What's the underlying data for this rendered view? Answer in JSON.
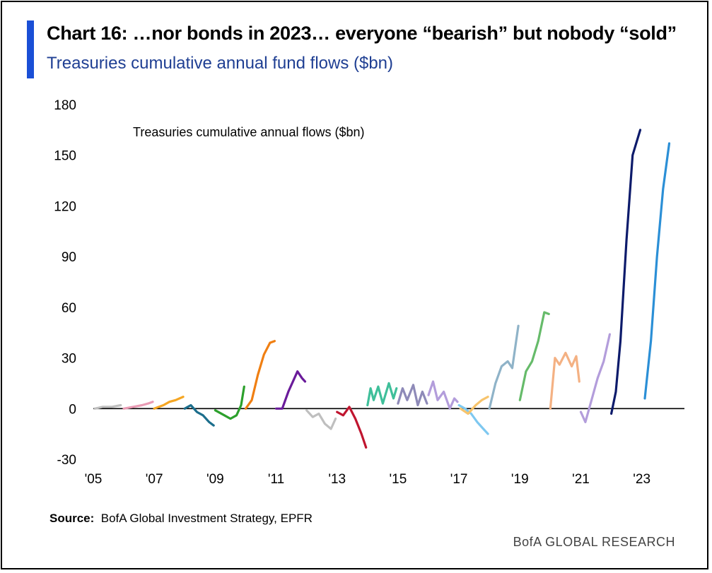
{
  "header": {
    "title": "Chart 16: …nor bonds in 2023… everyone “bearish” but nobody “sold”",
    "subtitle": "Treasuries cumulative annual fund flows ($bn)"
  },
  "footer": {
    "source_label": "Source:",
    "source_text": "BofA Global Investment Strategy, EPFR",
    "brand": "BofA GLOBAL RESEARCH"
  },
  "colors": {
    "accent": "#1a4fd6",
    "title": "#000000",
    "subtitle": "#1f3f93"
  },
  "chart_data": {
    "type": "line",
    "title": "Treasuries cumulative annual flows ($bn)",
    "xlim": [
      2005,
      2024.4
    ],
    "ylim": [
      -30,
      180
    ],
    "y_ticks": [
      180,
      150,
      120,
      90,
      60,
      30,
      0,
      -30
    ],
    "x_ticks": [
      {
        "label": "'05",
        "value": 2005
      },
      {
        "label": "'07",
        "value": 2007
      },
      {
        "label": "'09",
        "value": 2009
      },
      {
        "label": "'11",
        "value": 2011
      },
      {
        "label": "'13",
        "value": 2013
      },
      {
        "label": "'15",
        "value": 2015
      },
      {
        "label": "'17",
        "value": 2017
      },
      {
        "label": "'19",
        "value": 2019
      },
      {
        "label": "'21",
        "value": 2021
      },
      {
        "label": "'23",
        "value": 2023
      }
    ],
    "grid": false,
    "legend": "none",
    "series": [
      {
        "year": 2005,
        "color": "#bfbfbf",
        "points": [
          [
            2005.05,
            0
          ],
          [
            2005.3,
            1
          ],
          [
            2005.6,
            1
          ],
          [
            2005.9,
            2
          ]
        ]
      },
      {
        "year": 2006,
        "color": "#e99bb4",
        "points": [
          [
            2006.0,
            0
          ],
          [
            2006.3,
            1
          ],
          [
            2006.6,
            2
          ],
          [
            2006.8,
            3
          ],
          [
            2006.95,
            4
          ]
        ]
      },
      {
        "year": 2007,
        "color": "#f5a623",
        "points": [
          [
            2007.0,
            0
          ],
          [
            2007.3,
            2
          ],
          [
            2007.5,
            4
          ],
          [
            2007.7,
            5
          ],
          [
            2007.95,
            7
          ]
        ]
      },
      {
        "year": 2008,
        "color": "#1c6e8c",
        "points": [
          [
            2008.0,
            0
          ],
          [
            2008.2,
            2
          ],
          [
            2008.4,
            -2
          ],
          [
            2008.6,
            -4
          ],
          [
            2008.8,
            -8
          ],
          [
            2008.95,
            -10
          ]
        ]
      },
      {
        "year": 2009,
        "color": "#2ca02c",
        "points": [
          [
            2009.0,
            -1
          ],
          [
            2009.3,
            -4
          ],
          [
            2009.5,
            -6
          ],
          [
            2009.7,
            -4
          ],
          [
            2009.85,
            2
          ],
          [
            2009.95,
            13
          ]
        ]
      },
      {
        "year": 2010,
        "color": "#f07f12",
        "points": [
          [
            2010.0,
            0
          ],
          [
            2010.2,
            5
          ],
          [
            2010.4,
            20
          ],
          [
            2010.6,
            32
          ],
          [
            2010.8,
            39
          ],
          [
            2010.95,
            40
          ]
        ]
      },
      {
        "year": 2011,
        "color": "#6a1b9a",
        "points": [
          [
            2011.0,
            0
          ],
          [
            2011.2,
            0
          ],
          [
            2011.4,
            10
          ],
          [
            2011.6,
            18
          ],
          [
            2011.7,
            22
          ],
          [
            2011.85,
            18
          ],
          [
            2011.95,
            16
          ]
        ]
      },
      {
        "year": 2012,
        "color": "#bfbfbf",
        "points": [
          [
            2012.0,
            -1
          ],
          [
            2012.2,
            -5
          ],
          [
            2012.4,
            -3
          ],
          [
            2012.6,
            -9
          ],
          [
            2012.8,
            -12
          ],
          [
            2012.95,
            -6
          ]
        ]
      },
      {
        "year": 2013,
        "color": "#c0152f",
        "points": [
          [
            2013.0,
            -2
          ],
          [
            2013.2,
            -4
          ],
          [
            2013.4,
            1
          ],
          [
            2013.6,
            -6
          ],
          [
            2013.8,
            -15
          ],
          [
            2013.95,
            -23
          ]
        ]
      },
      {
        "year": 2014,
        "color": "#3fbf9a",
        "points": [
          [
            2014.0,
            2
          ],
          [
            2014.1,
            12
          ],
          [
            2014.2,
            5
          ],
          [
            2014.35,
            13
          ],
          [
            2014.5,
            3
          ],
          [
            2014.7,
            15
          ],
          [
            2014.85,
            6
          ],
          [
            2014.95,
            12
          ]
        ]
      },
      {
        "year": 2015,
        "color": "#8e8ab8",
        "points": [
          [
            2015.0,
            3
          ],
          [
            2015.15,
            12
          ],
          [
            2015.3,
            5
          ],
          [
            2015.5,
            14
          ],
          [
            2015.65,
            2
          ],
          [
            2015.8,
            10
          ],
          [
            2015.95,
            3
          ]
        ]
      },
      {
        "year": 2016,
        "color": "#b39ddb",
        "points": [
          [
            2016.0,
            8
          ],
          [
            2016.15,
            16
          ],
          [
            2016.3,
            5
          ],
          [
            2016.5,
            10
          ],
          [
            2016.7,
            0
          ],
          [
            2016.85,
            6
          ],
          [
            2016.95,
            4
          ]
        ]
      },
      {
        "year": 2017,
        "color": "#7ec8f0",
        "points": [
          [
            2017.0,
            2
          ],
          [
            2017.2,
            0
          ],
          [
            2017.4,
            -3
          ],
          [
            2017.6,
            -8
          ],
          [
            2017.8,
            -12
          ],
          [
            2017.95,
            -15
          ]
        ]
      },
      {
        "year": 2017.5,
        "color": "#f7c46c",
        "points": [
          [
            2017.05,
            0
          ],
          [
            2017.3,
            -3
          ],
          [
            2017.55,
            2
          ],
          [
            2017.75,
            5
          ],
          [
            2017.95,
            7
          ]
        ]
      },
      {
        "year": 2018,
        "color": "#8fb3c8",
        "points": [
          [
            2018.0,
            0
          ],
          [
            2018.2,
            15
          ],
          [
            2018.4,
            25
          ],
          [
            2018.6,
            28
          ],
          [
            2018.75,
            24
          ],
          [
            2018.95,
            49
          ]
        ]
      },
      {
        "year": 2019,
        "color": "#66bb6a",
        "points": [
          [
            2019.0,
            5
          ],
          [
            2019.2,
            22
          ],
          [
            2019.4,
            28
          ],
          [
            2019.6,
            40
          ],
          [
            2019.8,
            57
          ],
          [
            2019.95,
            56
          ]
        ]
      },
      {
        "year": 2020,
        "color": "#f4b183",
        "points": [
          [
            2020.0,
            0
          ],
          [
            2020.15,
            30
          ],
          [
            2020.3,
            26
          ],
          [
            2020.5,
            33
          ],
          [
            2020.7,
            25
          ],
          [
            2020.85,
            31
          ],
          [
            2020.95,
            16
          ]
        ]
      },
      {
        "year": 2021,
        "color": "#b39ddb",
        "points": [
          [
            2021.0,
            -2
          ],
          [
            2021.15,
            -8
          ],
          [
            2021.35,
            5
          ],
          [
            2021.55,
            18
          ],
          [
            2021.75,
            28
          ],
          [
            2021.95,
            44
          ]
        ]
      },
      {
        "year": 2022,
        "color": "#0d1b6b",
        "points": [
          [
            2022.0,
            -3
          ],
          [
            2022.15,
            10
          ],
          [
            2022.3,
            40
          ],
          [
            2022.5,
            100
          ],
          [
            2022.7,
            150
          ],
          [
            2022.95,
            165
          ]
        ]
      },
      {
        "year": 2023,
        "color": "#2b8fd6",
        "points": [
          [
            2023.1,
            6
          ],
          [
            2023.3,
            40
          ],
          [
            2023.5,
            90
          ],
          [
            2023.7,
            130
          ],
          [
            2023.9,
            157
          ]
        ]
      }
    ]
  }
}
